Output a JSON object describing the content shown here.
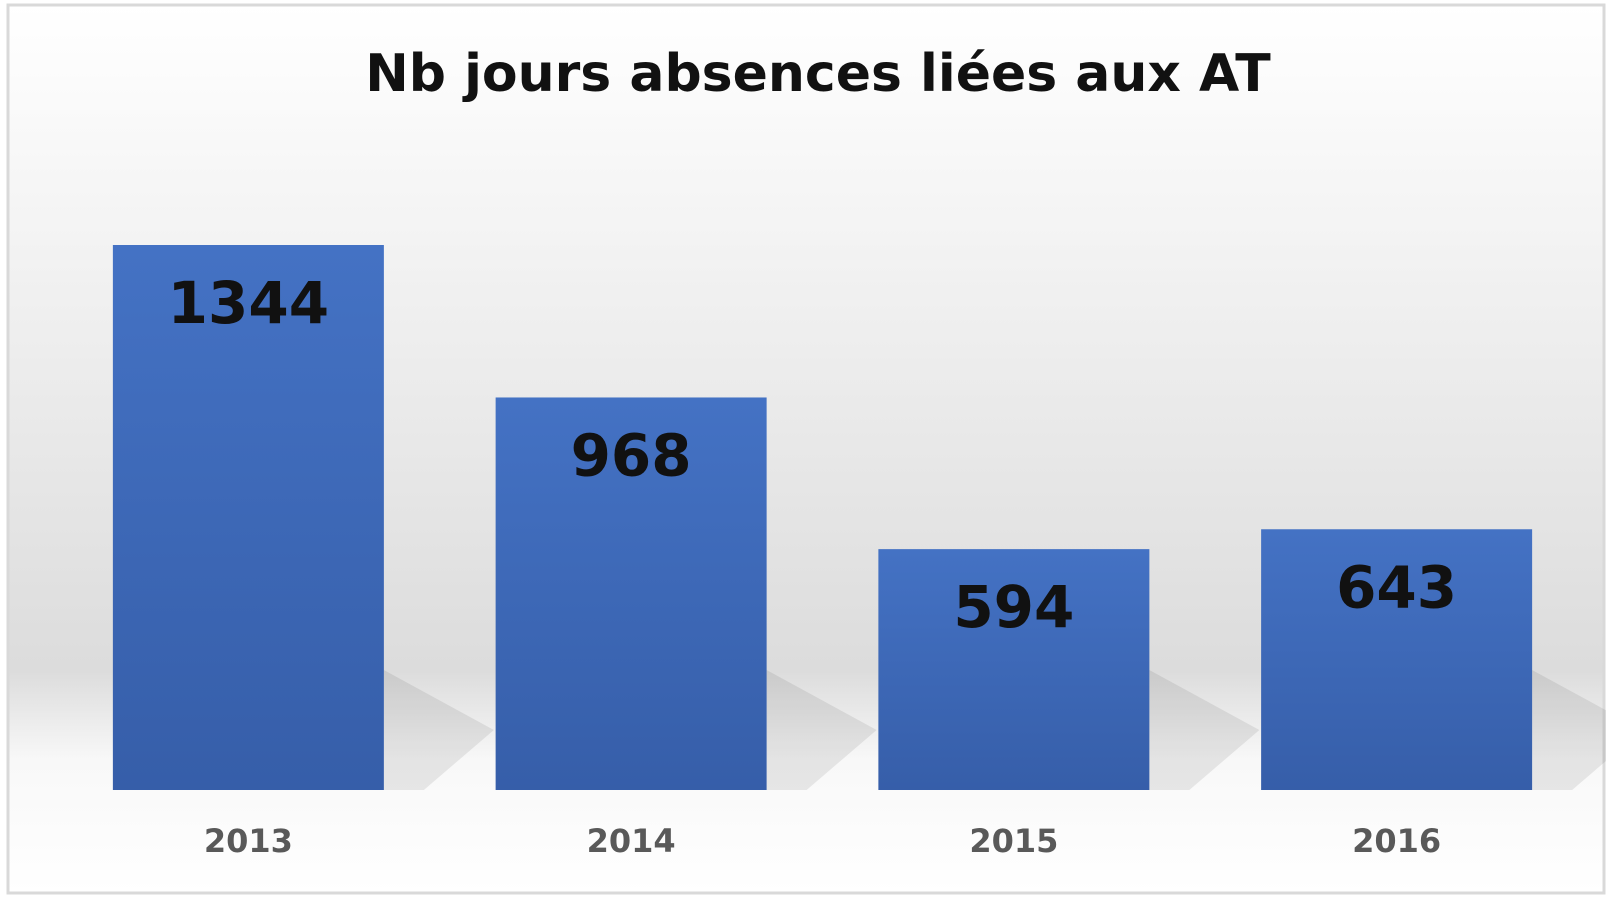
{
  "chart_data": {
    "type": "bar",
    "title": "Nb jours absences liées aux AT",
    "categories": [
      "2013",
      "2014",
      "2015",
      "2016"
    ],
    "values": [
      1344,
      968,
      594,
      643
    ],
    "color": "#4472c4"
  }
}
